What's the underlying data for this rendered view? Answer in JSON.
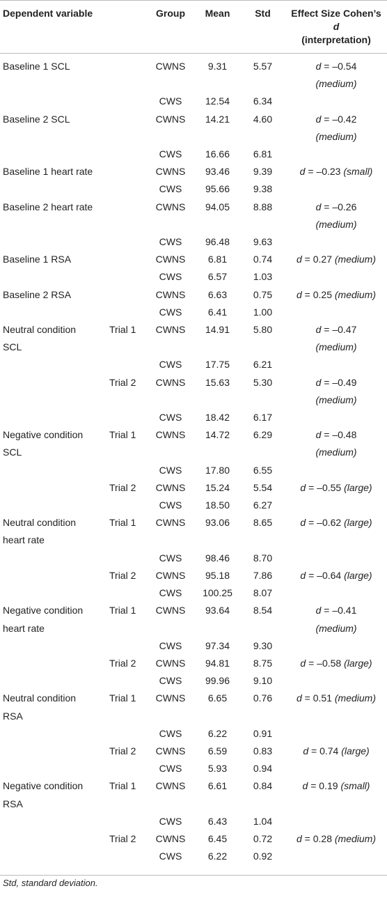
{
  "table": {
    "header": [
      "Dependent variable",
      "Group",
      "Mean",
      "Std",
      {
        "text": "Effect Size Cohen’s",
        "symbol": "d",
        "note": "(interpretation)"
      }
    ],
    "rows": [
      {
        "variable": "Baseline 1 SCL",
        "group": "CWNS",
        "mean": "9.31",
        "std": "5.57",
        "effect": {
          "symbol": "d",
          "value": "= –0.54",
          "interp": "(medium)"
        }
      },
      {
        "group": "CWS",
        "mean": "12.54",
        "std": "6.34"
      },
      {
        "variable": "Baseline 2 SCL",
        "group": "CWNS",
        "mean": "14.21",
        "std": "4.60",
        "effect": {
          "symbol": "d",
          "value": "= –0.42",
          "interp": "(medium)"
        }
      },
      {
        "group": "CWS",
        "mean": "16.66",
        "std": "6.81"
      },
      {
        "variable": "Baseline 1 heart rate",
        "group": "CWNS",
        "mean": "93.46",
        "std": "9.39",
        "effect": {
          "symbol": "d",
          "value": "= –0.23",
          "interp": "(small)"
        }
      },
      {
        "group": "CWS",
        "mean": "95.66",
        "std": "9.38"
      },
      {
        "variable": "Baseline 2 heart rate",
        "group": "CWNS",
        "mean": "94.05",
        "std": "8.88",
        "effect": {
          "symbol": "d",
          "value": "= –0.26",
          "interp": "(medium)"
        }
      },
      {
        "group": "CWS",
        "mean": "96.48",
        "std": "9.63"
      },
      {
        "variable": "Baseline 1 RSA",
        "group": "CWNS",
        "mean": "6.81",
        "std": "0.74",
        "effect": {
          "symbol": "d",
          "value": "= 0.27",
          "interp": "(medium)"
        }
      },
      {
        "group": "CWS",
        "mean": "6.57",
        "std": "1.03"
      },
      {
        "variable": "Baseline 2 RSA",
        "group": "CWNS",
        "mean": "6.63",
        "std": "0.75",
        "effect": {
          "symbol": "d",
          "value": "= 0.25",
          "interp": "(medium)"
        }
      },
      {
        "group": "CWS",
        "mean": "6.41",
        "std": "1.00"
      },
      {
        "variable": "Neutral condition SCL",
        "trial": "Trial 1",
        "group": "CWNS",
        "mean": "14.91",
        "std": "5.80",
        "effect": {
          "symbol": "d",
          "value": "= –0.47",
          "interp": "(medium)"
        }
      },
      {
        "group": "CWS",
        "mean": "17.75",
        "std": "6.21"
      },
      {
        "trial": "Trial 2",
        "group": "CWNS",
        "mean": "15.63",
        "std": "5.30",
        "effect": {
          "symbol": "d",
          "value": "= –0.49",
          "interp": "(medium)"
        }
      },
      {
        "group": "CWS",
        "mean": "18.42",
        "std": "6.17"
      },
      {
        "variable": "Negative condition SCL",
        "trial": "Trial 1",
        "group": "CWNS",
        "mean": "14.72",
        "std": "6.29",
        "effect": {
          "symbol": "d",
          "value": "= –0.48",
          "interp": "(medium)"
        }
      },
      {
        "group": "CWS",
        "mean": "17.80",
        "std": "6.55"
      },
      {
        "trial": "Trial 2",
        "group": "CWNS",
        "mean": "15.24",
        "std": "5.54",
        "effect": {
          "symbol": "d",
          "value": "= –0.55",
          "interp": "(large)"
        }
      },
      {
        "group": "CWS",
        "mean": "18.50",
        "std": "6.27"
      },
      {
        "variable": "Neutral condition heart rate",
        "trial": "Trial 1",
        "group": "CWNS",
        "mean": "93.06",
        "std": "8.65",
        "effect": {
          "symbol": "d",
          "value": "= –0.62",
          "interp": "(large)"
        }
      },
      {
        "group": "CWS",
        "mean": "98.46",
        "std": "8.70"
      },
      {
        "trial": "Trial 2",
        "group": "CWNS",
        "mean": "95.18",
        "std": "7.86",
        "effect": {
          "symbol": "d",
          "value": "= –0.64",
          "interp": "(large)"
        }
      },
      {
        "group": "CWS",
        "mean": "100.25",
        "std": "8.07"
      },
      {
        "variable": "Negative condition heart rate",
        "trial": "Trial 1",
        "group": "CWNS",
        "mean": "93.64",
        "std": "8.54",
        "effect": {
          "symbol": "d",
          "value": "= –0.41",
          "interp": "(medium)"
        }
      },
      {
        "group": "CWS",
        "mean": "97.34",
        "std": "9.30"
      },
      {
        "trial": "Trial 2",
        "group": "CWNS",
        "mean": "94.81",
        "std": "8.75",
        "effect": {
          "symbol": "d",
          "value": "= –0.58",
          "interp": "(large)"
        }
      },
      {
        "group": "CWS",
        "mean": "99.96",
        "std": "9.10"
      },
      {
        "variable": "Neutral condition RSA",
        "trial": "Trial 1",
        "group": "CWNS",
        "mean": "6.65",
        "std": "0.76",
        "effect": {
          "symbol": "d",
          "value": "= 0.51",
          "interp": "(medium)"
        }
      },
      {
        "group": "CWS",
        "mean": "6.22",
        "std": "0.91"
      },
      {
        "trial": "Trial 2",
        "group": "CWNS",
        "mean": "6.59",
        "std": "0.83",
        "effect": {
          "symbol": "d",
          "value": "= 0.74",
          "interp": "(large)"
        }
      },
      {
        "group": "CWS",
        "mean": "5.93",
        "std": "0.94"
      },
      {
        "variable": "Negative condition RSA",
        "trial": "Trial 1",
        "group": "CWNS",
        "mean": "6.61",
        "std": "0.84",
        "effect": {
          "symbol": "d",
          "value": "= 0.19",
          "interp": "(small)"
        }
      },
      {
        "group": "CWS",
        "mean": "6.43",
        "std": "1.04"
      },
      {
        "trial": "Trial 2",
        "group": "CWNS",
        "mean": "6.45",
        "std": "0.72",
        "effect": {
          "symbol": "d",
          "value": "= 0.28",
          "interp": "(medium)"
        }
      },
      {
        "group": "CWS",
        "mean": "6.22",
        "std": "0.92"
      }
    ],
    "footnote": "Std, standard deviation."
  }
}
